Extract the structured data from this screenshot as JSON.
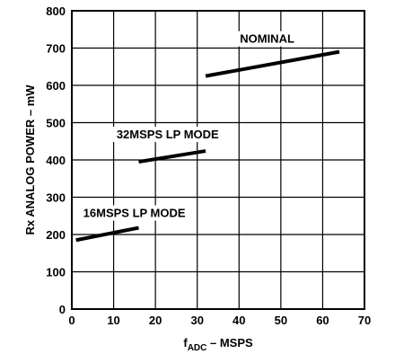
{
  "chart_data": {
    "type": "line",
    "xlabel_main": "f",
    "xlabel_sub": "ADC",
    "xlabel_rest": " – MSPS",
    "ylabel": "Rx ANALOG POWER – mW",
    "xlim": [
      0,
      70
    ],
    "ylim": [
      0,
      800
    ],
    "xticks": [
      0,
      10,
      20,
      30,
      40,
      50,
      60,
      70
    ],
    "yticks": [
      0,
      100,
      200,
      300,
      400,
      500,
      600,
      700,
      800
    ],
    "grid": true,
    "series": [
      {
        "name": "NOMINAL",
        "x": [
          32,
          64
        ],
        "y": [
          625,
          690
        ]
      },
      {
        "name": "32MSPS LP MODE",
        "x": [
          16,
          32
        ],
        "y": [
          395,
          424
        ]
      },
      {
        "name": "16MSPS LP MODE",
        "x": [
          1,
          16
        ],
        "y": [
          185,
          218
        ]
      }
    ]
  }
}
